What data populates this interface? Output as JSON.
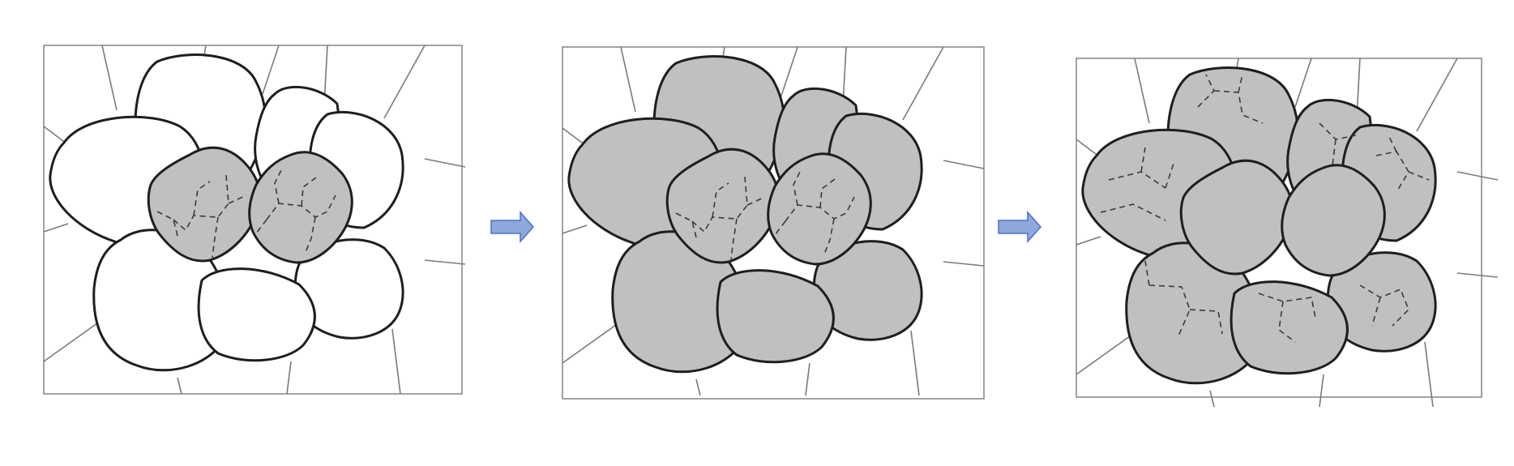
{
  "diagram": {
    "stages": [
      {
        "name": "stage-1",
        "outer_cells": "unfilled",
        "central_cells": "gray-with-dashed-subdivisions"
      },
      {
        "name": "stage-2",
        "outer_cells": "gray",
        "central_cells": "gray-with-dashed-subdivisions"
      },
      {
        "name": "stage-3",
        "outer_cells": "gray-with-dashed-subdivisions",
        "central_cells": "gray"
      }
    ],
    "arrows": 2,
    "colors": {
      "cell_fill_gray": "#c0c0c0",
      "cell_fill_white": "#ffffff",
      "cell_outline": "#1e1e1e",
      "arrow_fill": "#8fa8dc",
      "arrow_stroke": "#4a72c4"
    },
    "icons": {
      "arrow": "right-arrow-icon"
    }
  }
}
